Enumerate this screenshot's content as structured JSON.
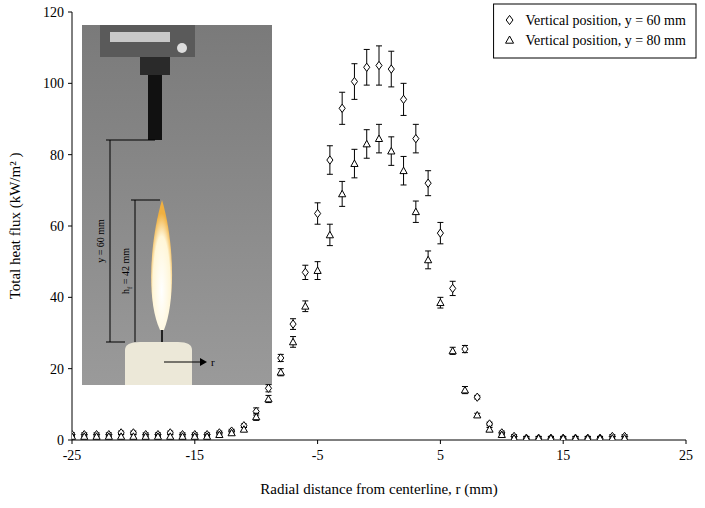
{
  "chart_data": {
    "type": "scatter",
    "x_label": "Radial distance from centerline, r (mm)",
    "y_label": "Total heat flux (kW/m² )",
    "xlim": [
      -25,
      25
    ],
    "xticks": [
      -25,
      -15,
      -5,
      5,
      15,
      25
    ],
    "ylim": [
      0,
      120
    ],
    "yticks": [
      0,
      20,
      40,
      60,
      80,
      100,
      120
    ],
    "grid": false,
    "legend": "top-right",
    "x": [
      -25,
      -24,
      -23,
      -22,
      -21,
      -20,
      -19,
      -18,
      -17,
      -16,
      -15,
      -14,
      -13,
      -12,
      -11,
      -10,
      -9,
      -8,
      -7,
      -6,
      -5,
      -4,
      -3,
      -2,
      -1,
      0,
      1,
      2,
      3,
      4,
      5,
      6,
      7,
      8,
      9,
      10,
      11,
      12,
      13,
      14,
      15,
      16,
      17,
      18,
      19,
      20
    ],
    "series": [
      {
        "name": "Vertical position, y = 60 mm",
        "color": "#000000",
        "marker": "diamond",
        "values": [
          1.5,
          1.5,
          1.5,
          1.5,
          2,
          2,
          1.5,
          1.5,
          2,
          1.5,
          1.5,
          1.5,
          2,
          2.5,
          4,
          8,
          14.5,
          23,
          32.5,
          47,
          63.5,
          78.5,
          93,
          100.5,
          104.5,
          105,
          104,
          95.5,
          84.5,
          72,
          58,
          42.5,
          25.5,
          12,
          4.5,
          2,
          1,
          0.5,
          0.5,
          0.5,
          0.5,
          0.5,
          0.5,
          0.5,
          1,
          1
        ],
        "errors": [
          0.5,
          0.5,
          0.5,
          0.5,
          0.5,
          0.5,
          0.5,
          0.5,
          0.5,
          0.5,
          0.5,
          0.5,
          0.5,
          0.5,
          0.5,
          1,
          1,
          1,
          1.5,
          2,
          3,
          4,
          4.5,
          5,
          5,
          5.5,
          5,
          4.5,
          4,
          3.5,
          3,
          2,
          1,
          0.5,
          0.5,
          0.5,
          0.5,
          0.5,
          0.5,
          0.5,
          0.5,
          0.5,
          0.5,
          0.5,
          0.5,
          0.5
        ]
      },
      {
        "name": "Vertical position, y = 80 mm",
        "color": "#000000",
        "marker": "triangle",
        "values": [
          1,
          1,
          1,
          1,
          1,
          1,
          1,
          1,
          1,
          1,
          1,
          1,
          1.5,
          2,
          3,
          6.5,
          11.5,
          19,
          27.5,
          37.5,
          47.5,
          57.5,
          69,
          77.5,
          83,
          84.5,
          81,
          75.5,
          64,
          50.5,
          38.5,
          25,
          14,
          7,
          3,
          1.5,
          0.5,
          0.5,
          0.5,
          0.5,
          0.5,
          0.5,
          0.5,
          0.5,
          0.5,
          0.5
        ],
        "errors": [
          0.5,
          0.5,
          0.5,
          0.5,
          0.5,
          0.5,
          0.5,
          0.5,
          0.5,
          0.5,
          0.5,
          0.5,
          0.5,
          0.5,
          0.5,
          1,
          1,
          1,
          1.5,
          1.5,
          2.5,
          3,
          3.5,
          4,
          4,
          4,
          4,
          4,
          3,
          2.5,
          1.5,
          1,
          1,
          0.5,
          0.5,
          0.5,
          0.5,
          0.5,
          0.5,
          0.5,
          0.5,
          0.5,
          0.5,
          0.5,
          0.5,
          0.5
        ]
      }
    ],
    "annotations": [
      {
        "text": "y = 60 mm"
      },
      {
        "text": "h",
        "sub": "f",
        "suffix": " = 42 mm"
      },
      {
        "text": "r"
      }
    ]
  }
}
